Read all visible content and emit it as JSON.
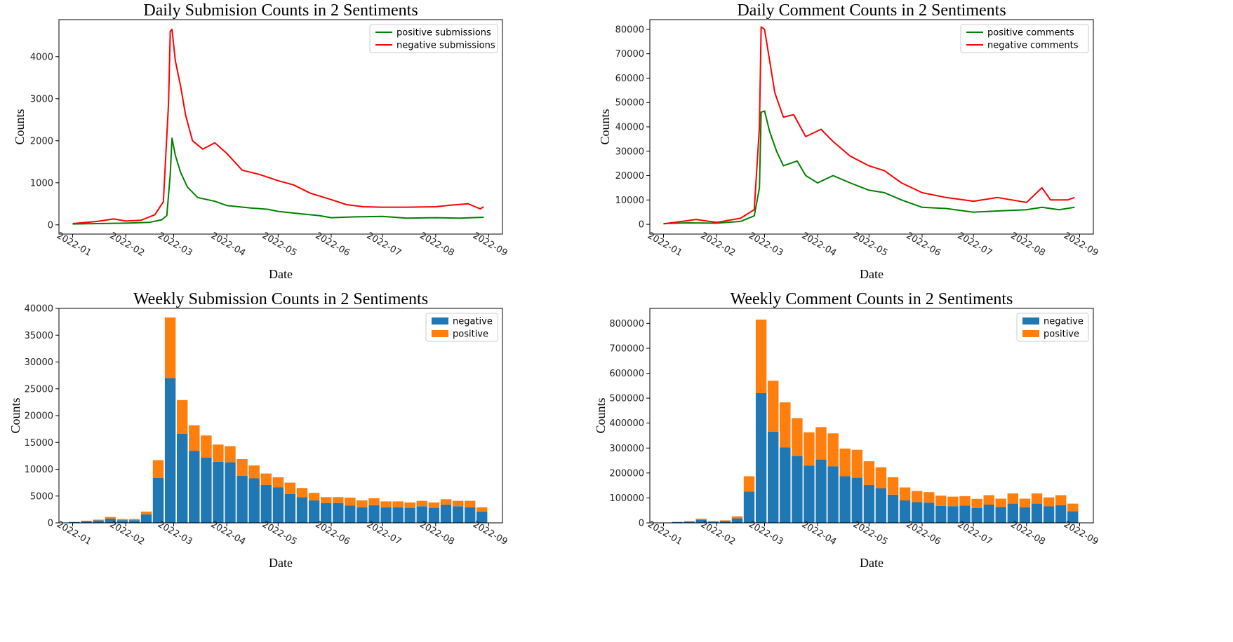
{
  "chart_data": [
    {
      "id": "daily-submissions",
      "type": "line",
      "title": "Daily Submision Counts in 2 Sentiments",
      "xlabel": "Date",
      "ylabel": "Counts",
      "xlim": [
        "2021-12-24",
        "2022-09-09"
      ],
      "ylim": [
        -220,
        4880
      ],
      "yticks": [
        0,
        1000,
        2000,
        3000,
        4000
      ],
      "xticks": [
        "2022-01",
        "2022-02",
        "2022-03",
        "2022-04",
        "2022-05",
        "2022-06",
        "2022-07",
        "2022-08",
        "2022-09"
      ],
      "legend": "top-right",
      "series": [
        {
          "name": "positive submissions",
          "color": "#008000",
          "points": [
            [
              "2022-01-01",
              20
            ],
            [
              "2022-01-15",
              30
            ],
            [
              "2022-02-01",
              40
            ],
            [
              "2022-02-15",
              60
            ],
            [
              "2022-02-22",
              120
            ],
            [
              "2022-02-25",
              220
            ],
            [
              "2022-02-27",
              1200
            ],
            [
              "2022-02-28",
              2060
            ],
            [
              "2022-03-02",
              1650
            ],
            [
              "2022-03-05",
              1250
            ],
            [
              "2022-03-09",
              900
            ],
            [
              "2022-03-15",
              650
            ],
            [
              "2022-03-25",
              560
            ],
            [
              "2022-04-01",
              460
            ],
            [
              "2022-04-15",
              400
            ],
            [
              "2022-04-25",
              370
            ],
            [
              "2022-05-01",
              320
            ],
            [
              "2022-05-15",
              260
            ],
            [
              "2022-05-25",
              220
            ],
            [
              "2022-06-01",
              170
            ],
            [
              "2022-06-15",
              190
            ],
            [
              "2022-07-01",
              200
            ],
            [
              "2022-07-15",
              160
            ],
            [
              "2022-08-01",
              170
            ],
            [
              "2022-08-15",
              160
            ],
            [
              "2022-08-29",
              180
            ]
          ]
        },
        {
          "name": "negative submissions",
          "color": "#ff0000",
          "points": [
            [
              "2022-01-01",
              30
            ],
            [
              "2022-01-15",
              80
            ],
            [
              "2022-01-25",
              140
            ],
            [
              "2022-02-01",
              90
            ],
            [
              "2022-02-10",
              110
            ],
            [
              "2022-02-18",
              240
            ],
            [
              "2022-02-23",
              550
            ],
            [
              "2022-02-26",
              2900
            ],
            [
              "2022-02-27",
              4600
            ],
            [
              "2022-02-28",
              4650
            ],
            [
              "2022-03-02",
              3900
            ],
            [
              "2022-03-05",
              3300
            ],
            [
              "2022-03-08",
              2600
            ],
            [
              "2022-03-12",
              2000
            ],
            [
              "2022-03-18",
              1800
            ],
            [
              "2022-03-25",
              1950
            ],
            [
              "2022-04-01",
              1700
            ],
            [
              "2022-04-10",
              1300
            ],
            [
              "2022-04-20",
              1200
            ],
            [
              "2022-05-01",
              1050
            ],
            [
              "2022-05-10",
              950
            ],
            [
              "2022-05-20",
              750
            ],
            [
              "2022-06-01",
              600
            ],
            [
              "2022-06-10",
              480
            ],
            [
              "2022-06-20",
              430
            ],
            [
              "2022-07-01",
              420
            ],
            [
              "2022-07-15",
              420
            ],
            [
              "2022-08-01",
              430
            ],
            [
              "2022-08-10",
              470
            ],
            [
              "2022-08-20",
              500
            ],
            [
              "2022-08-27",
              380
            ],
            [
              "2022-08-29",
              430
            ]
          ]
        }
      ]
    },
    {
      "id": "daily-comments",
      "type": "line",
      "title": "Daily Comment Counts in 2 Sentiments",
      "xlabel": "Date",
      "ylabel": "Counts",
      "xlim": [
        "2021-12-24",
        "2022-09-09"
      ],
      "ylim": [
        -4000,
        84000
      ],
      "yticks": [
        0,
        10000,
        20000,
        30000,
        40000,
        50000,
        60000,
        70000,
        80000
      ],
      "xticks": [
        "2022-01",
        "2022-02",
        "2022-03",
        "2022-04",
        "2022-05",
        "2022-06",
        "2022-07",
        "2022-08",
        "2022-09"
      ],
      "legend": "top-right",
      "series": [
        {
          "name": "positive comments",
          "color": "#008000",
          "points": [
            [
              "2022-01-01",
              300
            ],
            [
              "2022-01-15",
              600
            ],
            [
              "2022-02-01",
              500
            ],
            [
              "2022-02-15",
              1200
            ],
            [
              "2022-02-23",
              3500
            ],
            [
              "2022-02-26",
              15000
            ],
            [
              "2022-02-27",
              46000
            ],
            [
              "2022-03-01",
              46500
            ],
            [
              "2022-03-04",
              38000
            ],
            [
              "2022-03-08",
              30000
            ],
            [
              "2022-03-12",
              24000
            ],
            [
              "2022-03-20",
              26000
            ],
            [
              "2022-03-25",
              20000
            ],
            [
              "2022-04-01",
              17000
            ],
            [
              "2022-04-10",
              20000
            ],
            [
              "2022-04-20",
              17000
            ],
            [
              "2022-05-01",
              14000
            ],
            [
              "2022-05-10",
              13000
            ],
            [
              "2022-05-20",
              10000
            ],
            [
              "2022-06-01",
              7000
            ],
            [
              "2022-06-15",
              6500
            ],
            [
              "2022-07-01",
              5000
            ],
            [
              "2022-07-15",
              5500
            ],
            [
              "2022-08-01",
              6000
            ],
            [
              "2022-08-10",
              7000
            ],
            [
              "2022-08-20",
              6000
            ],
            [
              "2022-08-29",
              7000
            ]
          ]
        },
        {
          "name": "negative comments",
          "color": "#ff0000",
          "points": [
            [
              "2022-01-01",
              200
            ],
            [
              "2022-01-15",
              1500
            ],
            [
              "2022-01-20",
              2000
            ],
            [
              "2022-02-01",
              800
            ],
            [
              "2022-02-15",
              2500
            ],
            [
              "2022-02-23",
              6000
            ],
            [
              "2022-02-26",
              40000
            ],
            [
              "2022-02-27",
              81000
            ],
            [
              "2022-03-01",
              80000
            ],
            [
              "2022-03-04",
              67000
            ],
            [
              "2022-03-07",
              54000
            ],
            [
              "2022-03-12",
              44000
            ],
            [
              "2022-03-18",
              45000
            ],
            [
              "2022-03-25",
              36000
            ],
            [
              "2022-04-03",
              39000
            ],
            [
              "2022-04-10",
              34000
            ],
            [
              "2022-04-20",
              28000
            ],
            [
              "2022-05-01",
              24000
            ],
            [
              "2022-05-10",
              22000
            ],
            [
              "2022-05-20",
              17000
            ],
            [
              "2022-06-01",
              13000
            ],
            [
              "2022-06-15",
              11000
            ],
            [
              "2022-07-01",
              9500
            ],
            [
              "2022-07-15",
              11000
            ],
            [
              "2022-08-01",
              9000
            ],
            [
              "2022-08-10",
              15000
            ],
            [
              "2022-08-15",
              10000
            ],
            [
              "2022-08-25",
              10000
            ],
            [
              "2022-08-29",
              11000
            ]
          ]
        }
      ]
    },
    {
      "id": "weekly-submissions",
      "type": "bar",
      "stacked": true,
      "title": "Weekly Submission Counts in 2 Sentiments",
      "xlabel": "Date",
      "ylabel": "Counts",
      "xlim": [
        "2021-12-24",
        "2022-09-09"
      ],
      "ylim": [
        0,
        40000
      ],
      "yticks": [
        0,
        5000,
        10000,
        15000,
        20000,
        25000,
        30000,
        35000,
        40000
      ],
      "xticks": [
        "2022-01",
        "2022-02",
        "2022-03",
        "2022-04",
        "2022-05",
        "2022-06",
        "2022-07",
        "2022-08",
        "2022-09"
      ],
      "legend": "top-right",
      "dates": [
        "2022-01-02",
        "2022-01-09",
        "2022-01-16",
        "2022-01-23",
        "2022-01-30",
        "2022-02-06",
        "2022-02-13",
        "2022-02-20",
        "2022-02-27",
        "2022-03-06",
        "2022-03-13",
        "2022-03-20",
        "2022-03-27",
        "2022-04-03",
        "2022-04-10",
        "2022-04-17",
        "2022-04-24",
        "2022-05-01",
        "2022-05-08",
        "2022-05-15",
        "2022-05-22",
        "2022-05-29",
        "2022-06-05",
        "2022-06-12",
        "2022-06-19",
        "2022-06-26",
        "2022-07-03",
        "2022-07-10",
        "2022-07-17",
        "2022-07-24",
        "2022-07-31",
        "2022-08-07",
        "2022-08-14",
        "2022-08-21",
        "2022-08-28"
      ],
      "series": [
        {
          "name": "negative",
          "color": "#1f77b4",
          "values": [
            150,
            300,
            450,
            800,
            500,
            500,
            1600,
            8400,
            27000,
            16600,
            13400,
            12200,
            11400,
            11300,
            8800,
            8300,
            7100,
            6600,
            5400,
            4800,
            4200,
            3700,
            3700,
            3200,
            2900,
            3300,
            2900,
            2900,
            2800,
            3100,
            2800,
            3400,
            3100,
            2900,
            2100
          ]
        },
        {
          "name": "positive",
          "color": "#ff7f0e",
          "values": [
            50,
            100,
            150,
            300,
            200,
            200,
            500,
            3300,
            11300,
            6300,
            4800,
            4100,
            3200,
            3000,
            3100,
            2400,
            2100,
            1900,
            2100,
            1700,
            1400,
            1100,
            1100,
            1500,
            1300,
            1300,
            1100,
            1100,
            1000,
            1000,
            1000,
            1000,
            1000,
            1200,
            800
          ]
        }
      ]
    },
    {
      "id": "weekly-comments",
      "type": "bar",
      "stacked": true,
      "title": "Weekly Comment Counts in 2 Sentiments",
      "xlabel": "Date",
      "ylabel": "Counts",
      "xlim": [
        "2021-12-24",
        "2022-09-09"
      ],
      "ylim": [
        0,
        860000
      ],
      "yticks": [
        0,
        100000,
        200000,
        300000,
        400000,
        500000,
        600000,
        700000,
        800000
      ],
      "xticks": [
        "2022-01",
        "2022-02",
        "2022-03",
        "2022-04",
        "2022-05",
        "2022-06",
        "2022-07",
        "2022-08",
        "2022-09"
      ],
      "legend": "top-right",
      "dates": [
        "2022-01-02",
        "2022-01-09",
        "2022-01-16",
        "2022-01-23",
        "2022-01-30",
        "2022-02-06",
        "2022-02-13",
        "2022-02-20",
        "2022-02-27",
        "2022-03-06",
        "2022-03-13",
        "2022-03-20",
        "2022-03-27",
        "2022-04-03",
        "2022-04-10",
        "2022-04-17",
        "2022-04-24",
        "2022-05-01",
        "2022-05-08",
        "2022-05-15",
        "2022-05-22",
        "2022-05-29",
        "2022-06-05",
        "2022-06-12",
        "2022-06-19",
        "2022-06-26",
        "2022-07-03",
        "2022-07-10",
        "2022-07-17",
        "2022-07-24",
        "2022-07-31",
        "2022-08-07",
        "2022-08-14",
        "2022-08-21",
        "2022-08-28"
      ],
      "series": [
        {
          "name": "negative",
          "color": "#1f77b4",
          "values": [
            1000,
            3000,
            5000,
            12000,
            5000,
            7000,
            18000,
            125000,
            520000,
            366000,
            303000,
            268000,
            230000,
            254000,
            227000,
            187000,
            181000,
            152000,
            139000,
            113000,
            90000,
            83000,
            81000,
            68000,
            67000,
            69000,
            59000,
            73000,
            64000,
            77000,
            62000,
            77000,
            66000,
            71000,
            47000
          ]
        },
        {
          "name": "positive",
          "color": "#ff7f0e",
          "values": [
            500,
            1000,
            2000,
            5000,
            2000,
            3000,
            8000,
            62000,
            295000,
            204000,
            180000,
            152000,
            133000,
            130000,
            132000,
            111000,
            112000,
            95000,
            84000,
            70000,
            52000,
            45000,
            42000,
            41000,
            38000,
            38000,
            37000,
            38000,
            33000,
            41000,
            35000,
            41000,
            36000,
            40000,
            30000
          ]
        }
      ]
    }
  ]
}
